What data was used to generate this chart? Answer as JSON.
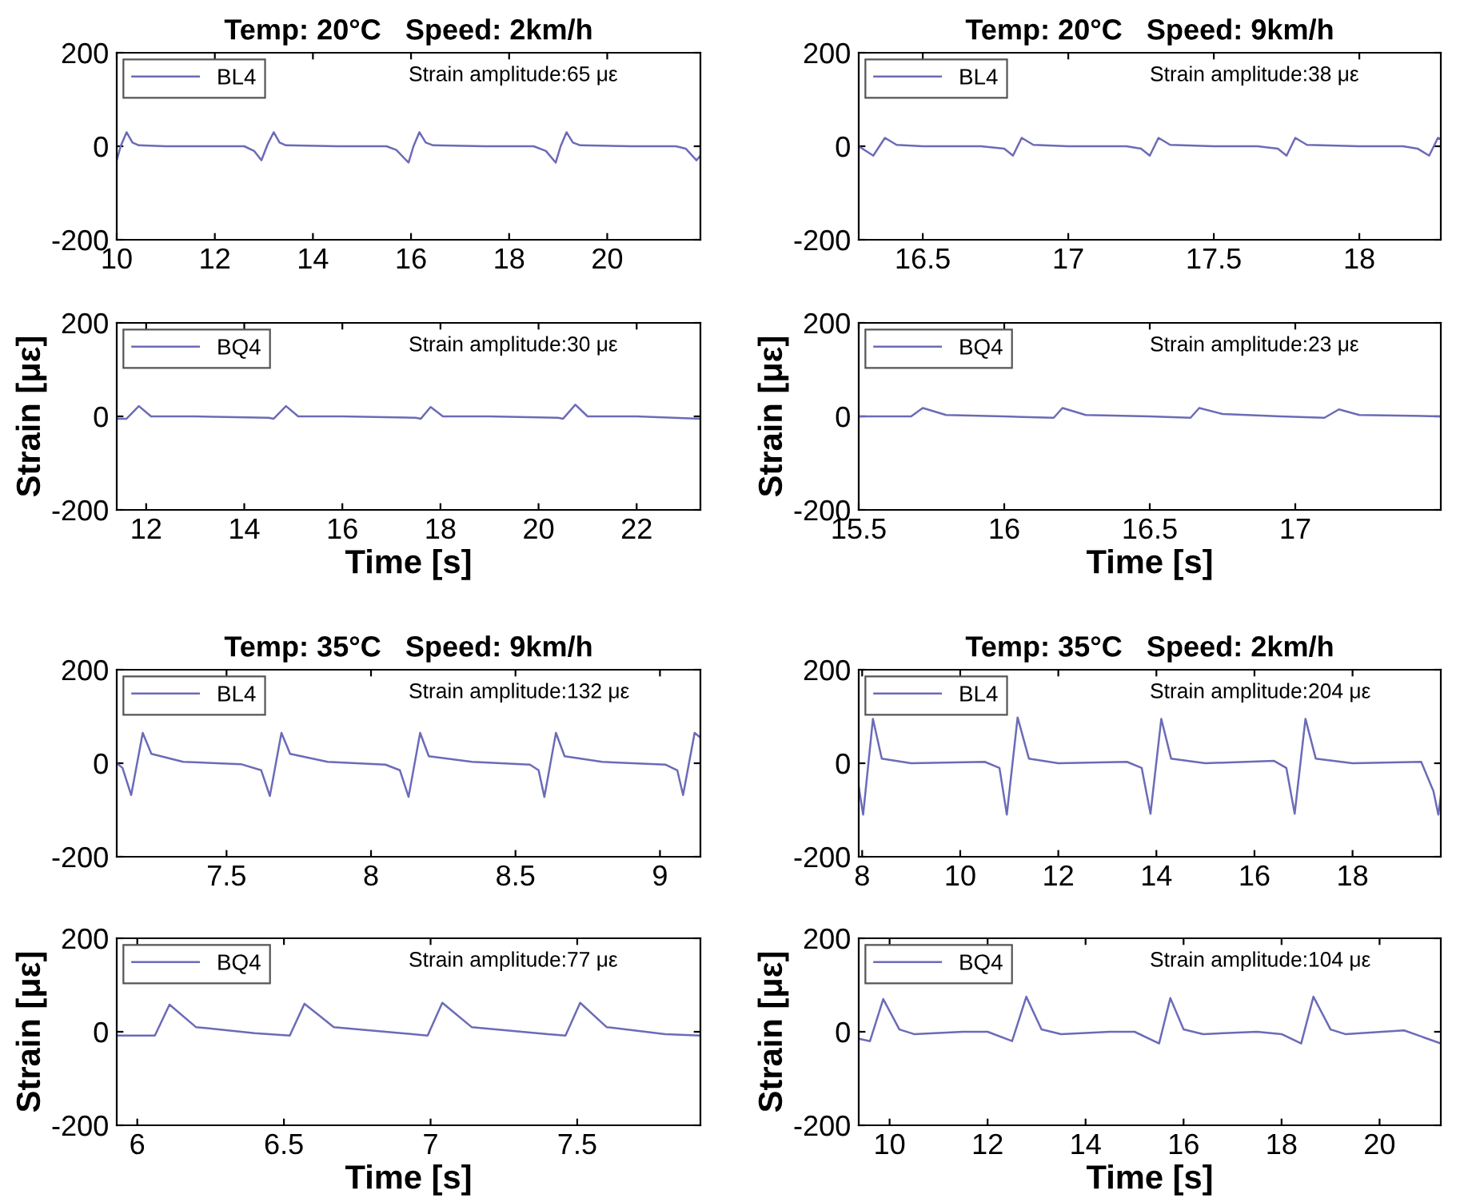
{
  "chart_data": [
    {
      "type": "line",
      "title": "Temp: 20°C   Speed: 2km/h",
      "xlim": [
        10,
        21.9
      ],
      "xticks": [
        10,
        12,
        14,
        16,
        18,
        20
      ],
      "ylim": [
        -200,
        200
      ],
      "yticks": [
        -200,
        0,
        200
      ],
      "legend": "top left",
      "annotations": [
        "Strain amplitude:65 με"
      ],
      "series": [
        {
          "name": "BL4",
          "color": "#6b6bb8",
          "x": [
            10.0,
            10.08,
            10.2,
            10.32,
            10.45,
            11.0,
            12.0,
            12.6,
            12.8,
            12.95,
            13.08,
            13.2,
            13.32,
            13.45,
            14.5,
            15.5,
            15.7,
            15.95,
            16.05,
            16.17,
            16.3,
            16.45,
            17.5,
            18.5,
            18.75,
            18.95,
            19.05,
            19.17,
            19.3,
            19.45,
            20.5,
            21.4,
            21.6,
            21.82,
            21.9
          ],
          "values": [
            -30,
            0,
            30,
            8,
            2,
            0,
            0,
            0,
            -10,
            -30,
            5,
            30,
            8,
            2,
            0,
            0,
            -8,
            -35,
            0,
            30,
            8,
            2,
            0,
            0,
            -10,
            -35,
            0,
            30,
            8,
            2,
            0,
            0,
            -5,
            -30,
            -20
          ]
        }
      ]
    },
    {
      "type": "line",
      "title": "Temp: 20°C   Speed: 9km/h",
      "xlim": [
        16.28,
        18.28
      ],
      "xticks": [
        16.5,
        17,
        17.5,
        18
      ],
      "ylim": [
        -200,
        200
      ],
      "yticks": [
        -200,
        0,
        200
      ],
      "legend": "top left",
      "annotations": [
        "Strain amplitude:38 με"
      ],
      "series": [
        {
          "name": "BL4",
          "color": "#6b6bb8",
          "x": [
            16.28,
            16.3,
            16.33,
            16.37,
            16.41,
            16.5,
            16.7,
            16.78,
            16.81,
            16.84,
            16.88,
            17.0,
            17.2,
            17.25,
            17.28,
            17.31,
            17.35,
            17.5,
            17.65,
            17.72,
            17.75,
            17.78,
            17.82,
            18.0,
            18.15,
            18.2,
            18.24,
            18.27,
            18.28
          ],
          "values": [
            0,
            -8,
            -20,
            18,
            3,
            0,
            0,
            -5,
            -20,
            18,
            3,
            0,
            0,
            -5,
            -20,
            18,
            3,
            0,
            0,
            -5,
            -20,
            18,
            3,
            0,
            0,
            -5,
            -20,
            18,
            15
          ]
        }
      ]
    },
    {
      "type": "line",
      "xlabel": "Time [s]",
      "ylabel": "Strain [με]",
      "xlim": [
        11.4,
        23.3
      ],
      "xticks": [
        12,
        14,
        16,
        18,
        20,
        22
      ],
      "ylim": [
        -200,
        200
      ],
      "yticks": [
        -200,
        0,
        200
      ],
      "legend": "top left",
      "annotations": [
        "Strain amplitude:30 με"
      ],
      "series": [
        {
          "name": "BQ4",
          "color": "#6b6bb8",
          "x": [
            11.4,
            11.6,
            11.85,
            12.1,
            13.0,
            14.5,
            14.6,
            14.85,
            15.1,
            16.0,
            17.5,
            17.6,
            17.8,
            18.05,
            19.0,
            20.4,
            20.5,
            20.75,
            21.0,
            22.0,
            23.3
          ],
          "values": [
            -5,
            -5,
            22,
            0,
            0,
            -3,
            -5,
            22,
            0,
            0,
            -3,
            -5,
            20,
            0,
            0,
            -3,
            -5,
            25,
            0,
            0,
            -5
          ]
        }
      ]
    },
    {
      "type": "line",
      "xlabel": "Time [s]",
      "ylabel": "Strain [με]",
      "xlim": [
        15.5,
        17.5
      ],
      "xticks": [
        15.5,
        16,
        16.5,
        17
      ],
      "ylim": [
        -200,
        200
      ],
      "yticks": [
        -200,
        0,
        200
      ],
      "legend": "top left",
      "annotations": [
        "Strain amplitude:23 με"
      ],
      "series": [
        {
          "name": "BQ4",
          "color": "#6b6bb8",
          "x": [
            15.5,
            15.68,
            15.72,
            15.8,
            16.0,
            16.17,
            16.2,
            16.28,
            16.5,
            16.64,
            16.67,
            16.75,
            16.95,
            17.1,
            17.15,
            17.22,
            17.5
          ],
          "values": [
            0,
            0,
            18,
            3,
            0,
            -3,
            18,
            3,
            0,
            -3,
            18,
            5,
            0,
            -3,
            15,
            3,
            0
          ]
        }
      ]
    },
    {
      "type": "line",
      "title": "Temp: 35°C   Speed: 9km/h",
      "xlim": [
        7.12,
        9.14
      ],
      "xticks": [
        7.5,
        8,
        8.5,
        9
      ],
      "ylim": [
        -200,
        200
      ],
      "yticks": [
        -200,
        0,
        200
      ],
      "legend": "top left",
      "annotations": [
        "Strain amplitude:132 με"
      ],
      "series": [
        {
          "name": "BL4",
          "color": "#6b6bb8",
          "x": [
            7.12,
            7.14,
            7.17,
            7.21,
            7.24,
            7.35,
            7.55,
            7.62,
            7.65,
            7.69,
            7.72,
            7.85,
            8.05,
            8.1,
            8.13,
            8.17,
            8.2,
            8.35,
            8.55,
            8.58,
            8.6,
            8.64,
            8.67,
            8.8,
            9.02,
            9.06,
            9.08,
            9.12,
            9.14
          ],
          "values": [
            0,
            -10,
            -68,
            65,
            20,
            3,
            -2,
            -15,
            -70,
            65,
            20,
            3,
            -3,
            -15,
            -72,
            65,
            15,
            3,
            -3,
            -15,
            -72,
            65,
            15,
            3,
            -3,
            -15,
            -68,
            65,
            55
          ]
        }
      ]
    },
    {
      "type": "line",
      "title": "Temp: 35°C   Speed: 2km/h",
      "xlim": [
        7.93,
        19.8
      ],
      "xticks": [
        8,
        10,
        12,
        14,
        16,
        18
      ],
      "ylim": [
        -200,
        200
      ],
      "yticks": [
        -200,
        0,
        200
      ],
      "legend": "top left",
      "annotations": [
        "Strain amplitude:204 με"
      ],
      "series": [
        {
          "name": "BL4",
          "color": "#6b6bb8",
          "x": [
            7.93,
            8.02,
            8.22,
            8.4,
            9.0,
            10.5,
            10.8,
            10.95,
            11.17,
            11.4,
            12.0,
            13.4,
            13.7,
            13.88,
            14.1,
            14.3,
            15.0,
            16.4,
            16.65,
            16.82,
            17.04,
            17.25,
            18.0,
            19.4,
            19.65,
            19.75,
            19.8
          ],
          "values": [
            -50,
            -110,
            95,
            10,
            0,
            3,
            -10,
            -110,
            98,
            10,
            0,
            3,
            -10,
            -108,
            95,
            10,
            0,
            5,
            -10,
            -108,
            95,
            10,
            0,
            3,
            -60,
            -110,
            -70
          ]
        }
      ]
    },
    {
      "type": "line",
      "xlabel": "Time [s]",
      "ylabel": "Strain [με]",
      "xlim": [
        5.93,
        7.92
      ],
      "xticks": [
        6,
        6.5,
        7,
        7.5
      ],
      "ylim": [
        -200,
        200
      ],
      "yticks": [
        -200,
        0,
        200
      ],
      "legend": "top left",
      "annotations": [
        "Strain amplitude:77 με"
      ],
      "series": [
        {
          "name": "BQ4",
          "color": "#6b6bb8",
          "x": [
            5.93,
            6.06,
            6.11,
            6.2,
            6.4,
            6.52,
            6.57,
            6.67,
            6.9,
            6.99,
            7.04,
            7.14,
            7.4,
            7.46,
            7.51,
            7.6,
            7.8,
            7.92
          ],
          "values": [
            -8,
            -8,
            58,
            10,
            -3,
            -8,
            60,
            10,
            -3,
            -8,
            62,
            10,
            -5,
            -8,
            62,
            10,
            -5,
            -8
          ]
        }
      ]
    },
    {
      "type": "line",
      "xlabel": "Time [s]",
      "ylabel": "Strain [με]",
      "xlim": [
        9.37,
        21.25
      ],
      "xticks": [
        10,
        12,
        14,
        16,
        18,
        20
      ],
      "ylim": [
        -200,
        200
      ],
      "yticks": [
        -200,
        0,
        200
      ],
      "legend": "top left",
      "annotations": [
        "Strain amplitude:104 με"
      ],
      "series": [
        {
          "name": "BQ4",
          "color": "#6b6bb8",
          "x": [
            9.37,
            9.6,
            9.87,
            10.2,
            10.5,
            11.5,
            12.0,
            12.5,
            12.79,
            13.1,
            13.5,
            14.5,
            15.0,
            15.5,
            15.73,
            16.0,
            16.4,
            17.5,
            18.0,
            18.4,
            18.65,
            19.0,
            19.3,
            20.5,
            21.25
          ],
          "values": [
            -15,
            -20,
            70,
            5,
            -5,
            0,
            0,
            -20,
            75,
            5,
            -5,
            0,
            0,
            -25,
            72,
            5,
            -5,
            0,
            -5,
            -25,
            75,
            5,
            -5,
            3,
            -25
          ]
        }
      ]
    }
  ]
}
